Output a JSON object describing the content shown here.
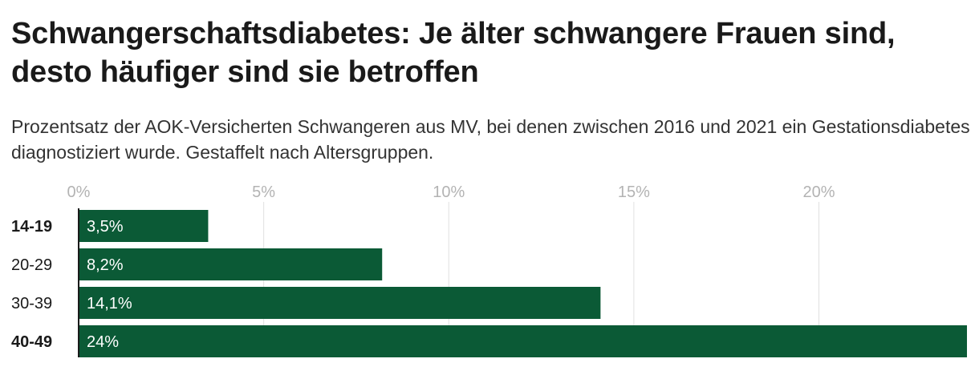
{
  "title": "Schwangerschaftsdiabetes: Je älter schwangere Frauen sind, desto häufiger sind sie betroffen",
  "subtitle": "Prozentsatz der AOK-Versicherten Schwangeren aus MV, bei denen zwischen 2016 und 2021 ein Gestationsdiabetes diagnostiziert wurde. Gestaffelt nach Altersgruppen.",
  "colors": {
    "bar": "#0b5a36",
    "grid": "#e0e0e0",
    "axis": "#1a1a1a"
  },
  "chart_data": {
    "type": "bar",
    "orientation": "horizontal",
    "categories": [
      "14-19",
      "20-29",
      "30-39",
      "40-49"
    ],
    "bold_categories": [
      "14-19",
      "40-49"
    ],
    "values": [
      3.5,
      8.2,
      14.1,
      24
    ],
    "value_labels": [
      "3,5%",
      "8,2%",
      "14,1%",
      "24%"
    ],
    "xticks": [
      0,
      5,
      10,
      15,
      20
    ],
    "xtick_labels": [
      "0%",
      "5%",
      "10%",
      "15%",
      "20%"
    ],
    "xlim": [
      0,
      24
    ],
    "grid": true,
    "title": "Schwangerschaftsdiabetes: Je älter schwangere Frauen sind, desto häufiger sind sie betroffen",
    "xlabel": "",
    "ylabel": ""
  }
}
